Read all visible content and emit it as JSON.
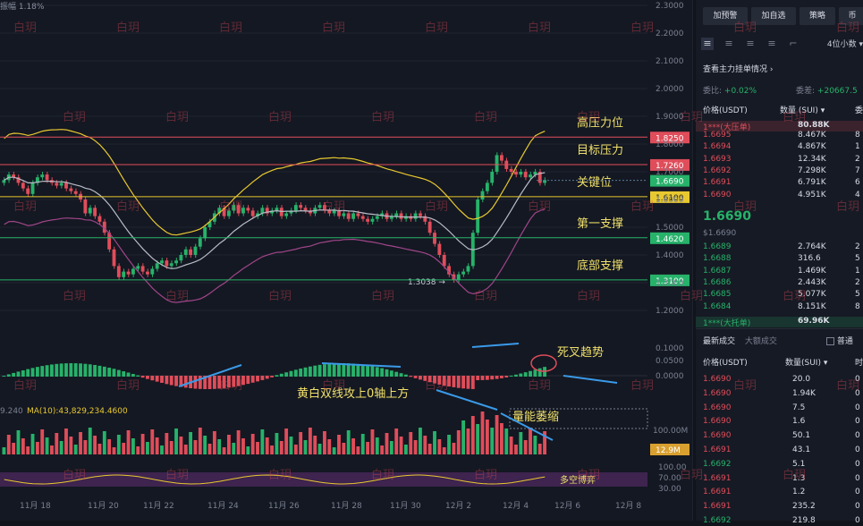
{
  "chart_header": {
    "amplitude": "振幅 1.18%"
  },
  "price_axis": [
    "2.3000",
    "2.2000",
    "2.1000",
    "2.0000",
    "1.9000",
    "1.8000",
    "1.7000",
    "1.6000",
    "1.5000",
    "1.4000",
    "1.3000",
    "1.2000"
  ],
  "levels": [
    {
      "label": "高压力位",
      "value": "1.8250",
      "price": 1.825,
      "color": "#e04d5a"
    },
    {
      "label": "目标压力",
      "value": "1.7260",
      "price": 1.726,
      "color": "#e04d5a"
    },
    {
      "label": "关键位",
      "value": "1.6100",
      "price": 1.61,
      "color": "#e8c830"
    },
    {
      "label": "第一支撑",
      "value": "1.4620",
      "price": 1.462,
      "color": "#27b26a"
    },
    {
      "label": "底部支撑",
      "value": "1.3100",
      "price": 1.31,
      "color": "#27b26a"
    }
  ],
  "current_price_tag": "1.6690",
  "low_marker": "1.3038 →",
  "macd_axis": [
    "0.1000",
    "0.0500",
    "0.0000"
  ],
  "macd_notes": {
    "cross": "死叉趋势",
    "lines": "黄白双线攻上0轴上方"
  },
  "volume": {
    "ma_label": "MA(10):43,829,234.4600",
    "left_label": "9.240",
    "axis": "100.00M",
    "tag": "12.9M",
    "note": "量能萎缩"
  },
  "rsi": {
    "axis": [
      "100.00",
      "70.00",
      "30.00"
    ],
    "note": "多空博弈"
  },
  "dates": [
    "11月 18",
    "11月 20",
    "11月 22",
    "11月 24",
    "11月 26",
    "11月 28",
    "11月 30",
    "12月 2",
    "12月 4",
    "12月 6",
    "12月 8"
  ],
  "watermark": "白玥",
  "side": {
    "buttons": [
      "加预警",
      "加自选",
      "策略",
      "币"
    ],
    "precision": "4位小数",
    "main_orders": "查看主力挂单情况",
    "entrust_ratio_label": "委比:",
    "entrust_ratio": "+0.02%",
    "entrust_diff_label": "委差:",
    "entrust_diff": "+20667.5",
    "book_headers": [
      "价格(USDT)",
      "数量 (SUI)",
      "委"
    ],
    "big_ask": {
      "label": "1***(大压单)",
      "qty": "80.88K"
    },
    "asks": [
      {
        "p": "1.6695",
        "q": "8.467K",
        "x": "8"
      },
      {
        "p": "1.6694",
        "q": "4.867K",
        "x": "1"
      },
      {
        "p": "1.6693",
        "q": "12.34K",
        "x": "2"
      },
      {
        "p": "1.6692",
        "q": "7.298K",
        "x": "7"
      },
      {
        "p": "1.6691",
        "q": "6.791K",
        "x": "6"
      },
      {
        "p": "1.6690",
        "q": "4.951K",
        "x": "4"
      }
    ],
    "last_price": "1.6690",
    "last_price_usd": "$1.6690",
    "bids": [
      {
        "p": "1.6689",
        "q": "2.764K",
        "x": "2"
      },
      {
        "p": "1.6688",
        "q": "316.6",
        "x": "5"
      },
      {
        "p": "1.6687",
        "q": "1.469K",
        "x": "1"
      },
      {
        "p": "1.6686",
        "q": "2.443K",
        "x": "2"
      },
      {
        "p": "1.6685",
        "q": "5.077K",
        "x": "5"
      },
      {
        "p": "1.6684",
        "q": "8.151K",
        "x": "8"
      }
    ],
    "big_bid": {
      "label": "1***(大托单)",
      "qty": "69.96K"
    },
    "trade_tabs": [
      "最新成交",
      "大额成交"
    ],
    "trade_filter": "普通",
    "trade_headers": [
      "价格(USDT)",
      "数量(SUI)",
      "时"
    ],
    "trades": [
      {
        "p": "1.6690",
        "q": "20.0",
        "t": "0"
      },
      {
        "p": "1.6690",
        "q": "1.94K",
        "t": "0"
      },
      {
        "p": "1.6690",
        "q": "7.5",
        "t": "0"
      },
      {
        "p": "1.6690",
        "q": "1.6",
        "t": "0"
      },
      {
        "p": "1.6690",
        "q": "50.1",
        "t": "0"
      },
      {
        "p": "1.6691",
        "q": "43.1",
        "t": "0"
      },
      {
        "p": "1.6692",
        "q": "5.1",
        "t": "0"
      },
      {
        "p": "1.6691",
        "q": "1.3",
        "t": "0"
      },
      {
        "p": "1.6691",
        "q": "1.2",
        "t": "0"
      },
      {
        "p": "1.6691",
        "q": "235.2",
        "t": "0"
      },
      {
        "p": "1.6692",
        "q": "219.8",
        "t": "0"
      }
    ]
  }
}
